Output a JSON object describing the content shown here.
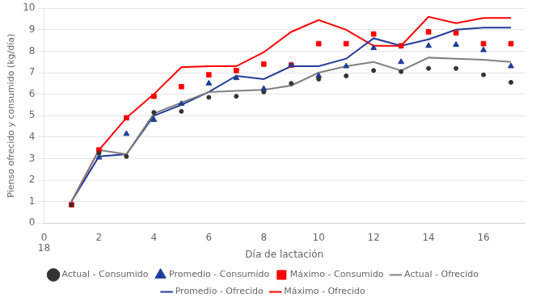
{
  "chart_data": {
    "type": "line",
    "xlabel": "Día de lactación",
    "ylabel": "Pienso ofrecido y consumido (kg/día)",
    "xlim": [
      0,
      17.5
    ],
    "xticks": [
      0,
      2,
      4,
      6,
      8,
      10,
      12,
      14,
      16
    ],
    "ylim": [
      0,
      10
    ],
    "yticks": [
      0,
      1,
      2,
      3,
      4,
      5,
      6,
      7,
      8,
      9,
      10
    ],
    "grid": "y",
    "legend": "bottom",
    "annotations": [
      {
        "text": "18",
        "x": 0,
        "y": 0
      }
    ],
    "series": [
      {
        "name": "Actual - Ofrecido",
        "type": "line",
        "line_style": "solid",
        "color": "#808080",
        "x": [
          1,
          2,
          3,
          4,
          5,
          6,
          7,
          8,
          9,
          10,
          11,
          12,
          13,
          14,
          15,
          16,
          17
        ],
        "values": [
          1.0,
          3.4,
          3.2,
          5.1,
          5.6,
          6.1,
          6.15,
          6.2,
          6.4,
          7.0,
          7.3,
          7.5,
          7.1,
          7.7,
          7.65,
          7.6,
          7.5
        ]
      },
      {
        "name": "Promedio - Ofrecido",
        "type": "line",
        "line_style": "solid",
        "color": "#1F3D99",
        "x": [
          1,
          2,
          3,
          4,
          5,
          6,
          7,
          8,
          9,
          10,
          11,
          12,
          13,
          14,
          15,
          16,
          17
        ],
        "values": [
          1.0,
          3.1,
          3.2,
          5.0,
          5.5,
          6.1,
          6.85,
          6.7,
          7.3,
          7.3,
          7.65,
          8.6,
          8.25,
          8.55,
          9.0,
          9.1,
          9.1
        ]
      },
      {
        "name": "Máximo - Ofrecido",
        "type": "line",
        "line_style": "solid",
        "color": "#FF0000",
        "x": [
          1,
          2,
          3,
          4,
          5,
          6,
          7,
          8,
          9,
          10,
          11,
          12,
          13,
          14,
          15,
          16,
          17
        ],
        "values": [
          1.0,
          3.4,
          4.9,
          6.0,
          7.25,
          7.3,
          7.3,
          7.95,
          8.9,
          9.45,
          9.0,
          8.25,
          8.25,
          9.6,
          9.3,
          9.55,
          9.55
        ]
      },
      {
        "name": "Actual - Consumido",
        "type": "scatter",
        "marker": "circle",
        "color": "#333333",
        "x": [
          1,
          2,
          3,
          4,
          5,
          6,
          7,
          8,
          9,
          10,
          11,
          12,
          13,
          14,
          15,
          16,
          17
        ],
        "values": [
          0.85,
          3.25,
          3.1,
          5.15,
          5.2,
          5.85,
          5.9,
          6.1,
          6.5,
          6.7,
          6.85,
          7.1,
          7.05,
          7.2,
          7.2,
          6.9,
          6.55
        ]
      },
      {
        "name": "Promedio - Consumido",
        "type": "scatter",
        "marker": "triangle",
        "color": "#1F3D99",
        "x": [
          2,
          3,
          4,
          5,
          6,
          7,
          8,
          9,
          10,
          11,
          12,
          13,
          14,
          15,
          16,
          17
        ],
        "values": [
          3.05,
          4.15,
          4.8,
          5.55,
          6.5,
          6.75,
          6.25,
          7.35,
          6.85,
          7.3,
          8.15,
          7.5,
          8.25,
          8.3,
          8.05,
          7.3
        ]
      },
      {
        "name": "Máximo - Consumido",
        "type": "scatter",
        "marker": "square",
        "color": "#FF0000",
        "x": [
          1,
          2,
          3,
          4,
          5,
          6,
          7,
          8,
          9,
          10,
          11,
          12,
          13,
          14,
          15,
          16,
          17
        ],
        "values": [
          0.85,
          3.4,
          4.9,
          5.9,
          6.35,
          6.9,
          7.1,
          7.4,
          7.35,
          8.35,
          8.35,
          8.8,
          8.25,
          8.9,
          8.85,
          8.35,
          8.35
        ]
      }
    ]
  }
}
